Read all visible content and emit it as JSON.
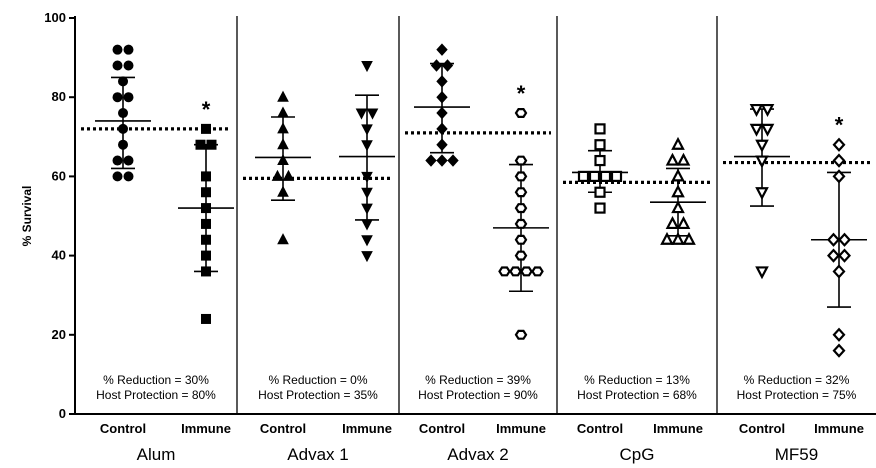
{
  "chart_data": {
    "type": "scatter",
    "ylabel": "% Survival",
    "ylim": [
      0,
      100
    ],
    "yticks": [
      0,
      20,
      40,
      60,
      80,
      100
    ],
    "grid": false,
    "groups": [
      {
        "name": "Alum",
        "reference_line": 72,
        "annotation_lines": [
          "% Reduction = 30%",
          "Host Protection = 80%"
        ],
        "series": [
          {
            "name": "Control",
            "marker": "circle-filled",
            "mean": 74,
            "sd_low": 62,
            "sd_high": 85,
            "values": [
              92,
              92,
              88,
              88,
              84,
              80,
              80,
              76,
              72,
              68,
              64,
              64,
              60,
              60
            ]
          },
          {
            "name": "Immune",
            "marker": "square-filled",
            "mean": 52,
            "sd_low": 36,
            "sd_high": 68,
            "significant": "*",
            "values": [
              72,
              68,
              68,
              60,
              56,
              52,
              48,
              44,
              40,
              36,
              24
            ]
          }
        ]
      },
      {
        "name": "Advax 1",
        "reference_line": 59.5,
        "annotation_lines": [
          "% Reduction = 0%",
          "Host Protection = 35%"
        ],
        "series": [
          {
            "name": "Control",
            "marker": "triangle-up-filled",
            "mean": 64.8,
            "sd_low": 54,
            "sd_high": 75,
            "values": [
              80,
              76,
              72,
              68,
              64,
              60,
              60,
              56,
              44
            ]
          },
          {
            "name": "Immune",
            "marker": "triangle-down-filled",
            "mean": 65,
            "sd_low": 49,
            "sd_high": 80.5,
            "values": [
              88,
              76,
              76,
              72,
              68,
              60,
              56,
              52,
              48,
              44,
              40
            ]
          }
        ]
      },
      {
        "name": "Advax 2",
        "reference_line": 71,
        "annotation_lines": [
          "% Reduction = 39%",
          "Host Protection = 90%"
        ],
        "series": [
          {
            "name": "Control",
            "marker": "diamond-filled",
            "mean": 77.5,
            "sd_low": 66,
            "sd_high": 88.5,
            "values": [
              92,
              88,
              88,
              84,
              80,
              76,
              72,
              68,
              64,
              64,
              64
            ]
          },
          {
            "name": "Immune",
            "marker": "hexagon-open",
            "mean": 47,
            "sd_low": 31,
            "sd_high": 63,
            "significant": "*",
            "values": [
              76,
              64,
              60,
              56,
              52,
              48,
              44,
              40,
              36,
              36,
              36,
              36,
              20
            ]
          }
        ]
      },
      {
        "name": "CpG",
        "reference_line": 58.5,
        "annotation_lines": [
          "% Reduction = 13%",
          "Host Protection = 68%"
        ],
        "series": [
          {
            "name": "Control",
            "marker": "square-open",
            "mean": 61,
            "sd_low": 56,
            "sd_high": 66.5,
            "values": [
              72,
              68,
              64,
              60,
              60,
              60,
              60,
              56,
              52
            ]
          },
          {
            "name": "Immune",
            "marker": "triangle-up-open",
            "mean": 53.5,
            "sd_low": 45,
            "sd_high": 62,
            "values": [
              68,
              64,
              64,
              60,
              56,
              52,
              48,
              48,
              44,
              44,
              44
            ]
          }
        ]
      },
      {
        "name": "MF59",
        "reference_line": 63.5,
        "annotation_lines": [
          "% Reduction = 32%",
          "Host Protection = 75%"
        ],
        "series": [
          {
            "name": "Control",
            "marker": "triangle-down-open",
            "mean": 65,
            "sd_low": 52.5,
            "sd_high": 77,
            "values": [
              77,
              77,
              72,
              72,
              68,
              64,
              56,
              36
            ]
          },
          {
            "name": "Immune",
            "marker": "diamond-open",
            "mean": 44,
            "sd_low": 27,
            "sd_high": 61,
            "significant": "*",
            "values": [
              68,
              64,
              60,
              44,
              44,
              40,
              40,
              36,
              20,
              16
            ]
          }
        ]
      }
    ]
  }
}
